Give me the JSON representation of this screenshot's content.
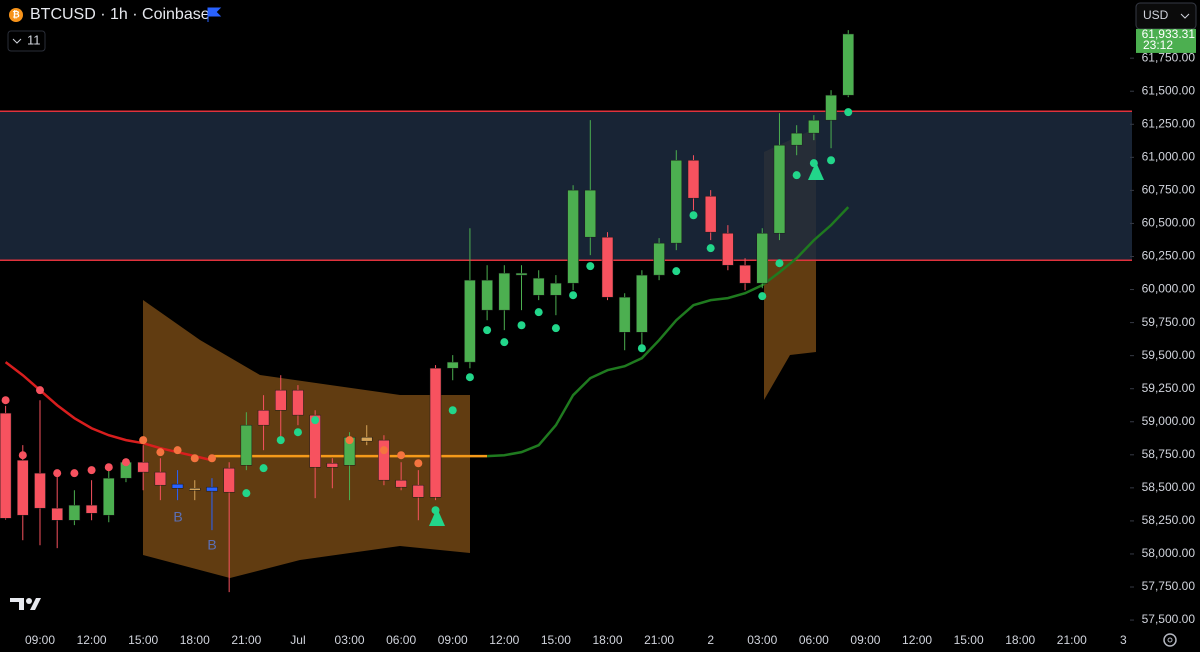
{
  "header": {
    "symbol": "BTCUSD · 1h · Coinbase",
    "indicator_count": "11",
    "currency": "USD"
  },
  "chart_data": {
    "type": "candlestick",
    "categories": [
      null,
      null,
      "09:00",
      null,
      null,
      "12:00",
      null,
      null,
      "15:00",
      null,
      null,
      "18:00",
      null,
      null,
      "21:00",
      null,
      null,
      "Jul",
      null,
      null,
      "03:00",
      null,
      null,
      "06:00",
      null,
      null,
      "09:00",
      null,
      null,
      "12:00",
      null,
      null,
      "15:00",
      null,
      null,
      "18:00",
      null,
      null,
      "21:00",
      null,
      null,
      "2",
      null,
      null,
      "03:00",
      null,
      null,
      "06:00",
      null,
      null,
      "09:00",
      null,
      null,
      "12:00",
      null,
      null,
      "15:00",
      null,
      null,
      "18:00",
      null,
      null,
      "21:00",
      null,
      null,
      "3"
    ],
    "open": [
      59065,
      58709,
      58611,
      58346,
      58255,
      58369,
      58293,
      58573,
      58694,
      58619,
      58528,
      58497,
      58505,
      58649,
      58671,
      59087,
      59239,
      59239,
      59050,
      58686,
      58671,
      58883,
      58861,
      58558,
      58520,
      59405,
      59405,
      59451,
      59844,
      59844,
      60109,
      59957,
      59957,
      60048,
      60396,
      60396,
      59677,
      59677,
      60109,
      60351,
      60978,
      60706,
      60426,
      60184,
      60048,
      60426,
      61092,
      61183,
      61281,
      61470,
      null,
      null,
      null,
      null,
      null,
      null,
      null,
      null,
      null,
      null,
      null,
      null,
      null,
      null,
      null,
      null
    ],
    "high": [
      59120,
      58823,
      59163,
      58634,
      58482,
      58558,
      58634,
      58724,
      58823,
      58724,
      58634,
      58558,
      58573,
      58694,
      59072,
      59201,
      59352,
      59277,
      59087,
      58724,
      58921,
      58974,
      58898,
      58694,
      58634,
      59428,
      59504,
      60464,
      60184,
      60184,
      60184,
      60146,
      60109,
      60789,
      61281,
      60434,
      59972,
      60146,
      60389,
      61054,
      61016,
      60752,
      60487,
      60237,
      60464,
      61334,
      61243,
      61319,
      61508,
      61962,
      null,
      null,
      null,
      null,
      null,
      null,
      null,
      null,
      null,
      null,
      null,
      null,
      null,
      null,
      null,
      null
    ],
    "low": [
      58260,
      58104,
      58066,
      58044,
      58218,
      58255,
      58240,
      58543,
      58482,
      58407,
      58407,
      58407,
      58180,
      57711,
      58634,
      58785,
      58861,
      58974,
      58422,
      58497,
      58407,
      58823,
      58520,
      58482,
      58255,
      58407,
      59314,
      59405,
      59768,
      59693,
      59844,
      59920,
      59806,
      59995,
      60260,
      59920,
      59541,
      59541,
      60071,
      60298,
      60600,
      60374,
      60146,
      59995,
      60010,
      60374,
      61016,
      61130,
      61069,
      61455,
      null,
      null,
      null,
      null,
      null,
      null,
      null,
      null,
      null,
      null,
      null,
      null,
      null,
      null,
      null,
      null
    ],
    "close": [
      58270,
      58293,
      58346,
      58255,
      58369,
      58308,
      58573,
      58694,
      58619,
      58520,
      58497,
      58482,
      58475,
      58467,
      58974,
      58974,
      59087,
      59050,
      58656,
      58656,
      58883,
      58853,
      58558,
      58505,
      58429,
      58429,
      59451,
      60071,
      60071,
      60124,
      60124,
      60086,
      60048,
      60752,
      60752,
      59942,
      59942,
      60109,
      60351,
      60978,
      60691,
      60434,
      60184,
      60048,
      60426,
      61092,
      61183,
      61281,
      61470,
      61933,
      null,
      null,
      null,
      null,
      null,
      null,
      null,
      null,
      null,
      null,
      null,
      null,
      null,
      null,
      null,
      null
    ],
    "colors": [
      "#f7525f",
      "#f7525f",
      "#f7525f",
      "#f7525f",
      "#4caf50",
      "#f7525f",
      "#4caf50",
      "#4caf50",
      "#f7525f",
      "#f7525f",
      "#2962ff",
      "#d7a55a",
      "#2962ff",
      "#f7525f",
      "#4caf50",
      "#f7525f",
      "#f7525f",
      "#f7525f",
      "#f7525f",
      "#f7525f",
      "#4caf50",
      "#d7a55a",
      "#f7525f",
      "#f7525f",
      "#f7525f",
      "#f7525f",
      "#4caf50",
      "#4caf50",
      "#4caf50",
      "#4caf50",
      "#4caf50",
      "#4caf50",
      "#4caf50",
      "#4caf50",
      "#4caf50",
      "#f7525f",
      "#4caf50",
      "#4caf50",
      "#4caf50",
      "#4caf50",
      "#f7525f",
      "#f7525f",
      "#f7525f",
      "#f7525f",
      "#4caf50",
      "#4caf50",
      "#4caf50",
      "#4caf50",
      "#4caf50",
      "#4caf50",
      null,
      null,
      null,
      null,
      null,
      null,
      null,
      null,
      null,
      null,
      null,
      null,
      null,
      null,
      null,
      null
    ],
    "trend": [
      {
        "color": "#d81e1e",
        "values": [
          59451,
          59352,
          59239,
          59125,
          59027,
          58951,
          58898,
          58861,
          58838,
          58800,
          58770,
          58740,
          58709,
          null,
          null,
          null,
          null,
          null,
          null,
          null,
          null,
          null,
          null,
          null,
          null,
          null,
          null,
          null,
          null,
          null,
          null,
          null,
          null,
          null,
          null,
          null,
          null,
          null,
          null,
          null,
          null,
          null,
          null,
          null,
          null,
          null,
          null,
          null,
          null,
          null,
          null,
          null,
          null,
          null,
          null,
          null,
          null,
          null,
          null,
          null,
          null,
          null,
          null,
          null,
          null,
          null
        ]
      },
      {
        "color": "#f59a1a",
        "values": [
          null,
          null,
          null,
          null,
          null,
          null,
          null,
          null,
          null,
          null,
          null,
          null,
          58740,
          58740,
          58740,
          58740,
          58740,
          58740,
          58740,
          58740,
          58740,
          58740,
          58740,
          58740,
          58740,
          58740,
          58740,
          58740,
          58740,
          null,
          null,
          null,
          null,
          null,
          null,
          null,
          null,
          null,
          null,
          null,
          null,
          null,
          null,
          null,
          null,
          null,
          null,
          null,
          null,
          null,
          null,
          null,
          null,
          null,
          null,
          null,
          null,
          null,
          null,
          null,
          null,
          null,
          null,
          null,
          null,
          null
        ]
      },
      {
        "color": "#1f7a1f",
        "values": [
          null,
          null,
          null,
          null,
          null,
          null,
          null,
          null,
          null,
          null,
          null,
          null,
          null,
          null,
          null,
          null,
          null,
          null,
          null,
          null,
          null,
          null,
          null,
          null,
          null,
          null,
          null,
          null,
          58740,
          58747,
          58770,
          58823,
          58974,
          59201,
          59330,
          59390,
          59420,
          59481,
          59617,
          59768,
          59882,
          59920,
          59935,
          59972,
          60033,
          60131,
          60237,
          60373,
          60487,
          60623,
          null,
          null,
          null,
          null,
          null,
          null,
          null,
          null,
          null,
          null,
          null,
          null,
          null,
          null,
          null,
          null
        ]
      }
    ],
    "dots": {
      "values": [
        59163,
        58747,
        59239,
        58611,
        58611,
        58634,
        58656,
        58694,
        58861,
        58770,
        58785,
        58724,
        58724,
        null,
        58460,
        58649,
        58861,
        58921,
        59012,
        null,
        58861,
        null,
        58785,
        58747,
        58686,
        58331,
        59087,
        59337,
        59693,
        59602,
        59730,
        59829,
        59708,
        59957,
        60177,
        null,
        null,
        59556,
        null,
        60139,
        60562,
        60313,
        null,
        null,
        59950,
        60199,
        60865,
        60956,
        60978,
        61342,
        null,
        null,
        null,
        null,
        null,
        null,
        null,
        null,
        null,
        null,
        null,
        null,
        null,
        null,
        null,
        null
      ],
      "colors": [
        "#f7525f",
        "#f7525f",
        "#f7525f",
        "#f7525f",
        "#f7525f",
        "#f7525f",
        "#f7525f",
        "#f7525f",
        "#f5743f",
        "#f5743f",
        "#f5743f",
        "#f5743f",
        "#f5743f",
        null,
        "#22d68a",
        "#22d68a",
        "#22d68a",
        "#22d68a",
        "#22d68a",
        null,
        "#f5743f",
        null,
        "#f5743f",
        "#f5743f",
        "#f5743f",
        "#22d68a",
        "#22d68a",
        "#22d68a",
        "#22d68a",
        "#22d68a",
        "#22d68a",
        "#22d68a",
        "#22d68a",
        "#22d68a",
        "#22d68a",
        null,
        null,
        "#22d68a",
        null,
        "#22d68a",
        "#22d68a",
        "#22d68a",
        null,
        null,
        "#22d68a",
        "#22d68a",
        "#22d68a",
        "#22d68a",
        "#22d68a",
        "#22d68a",
        null,
        null,
        null,
        null,
        null,
        null,
        null,
        null,
        null,
        null,
        null,
        null,
        null,
        null,
        null,
        null
      ]
    },
    "zone": {
      "top": 61349,
      "bottom": 60222,
      "line_color": "#e0323c",
      "fill": "#1c2a3e"
    },
    "markers": [
      "B",
      "B"
    ],
    "last_price": {
      "value": 61933.31,
      "label": "61,933.31"
    },
    "countdown": "23:12",
    "ylim": [
      57440,
      62190
    ],
    "yticks": [
      {
        "value": 57500,
        "label": "57,500.00"
      },
      {
        "value": 57750,
        "label": "57,750.00"
      },
      {
        "value": 58000,
        "label": "58,000.00"
      },
      {
        "value": 58250,
        "label": "58,250.00"
      },
      {
        "value": 58500,
        "label": "58,500.00"
      },
      {
        "value": 58750,
        "label": "58,750.00"
      },
      {
        "value": 59000,
        "label": "59,000.00"
      },
      {
        "value": 59250,
        "label": "59,250.00"
      },
      {
        "value": 59500,
        "label": "59,500.00"
      },
      {
        "value": 59750,
        "label": "59,750.00"
      },
      {
        "value": 60000,
        "label": "60,000.00"
      },
      {
        "value": 60250,
        "label": "60,250.00"
      },
      {
        "value": 60500,
        "label": "60,500.00"
      },
      {
        "value": 60750,
        "label": "60,750.00"
      },
      {
        "value": 61000,
        "label": "61,000.00"
      },
      {
        "value": 61250,
        "label": "61,250.00"
      },
      {
        "value": 61500,
        "label": "61,500.00"
      },
      {
        "value": 61750,
        "label": "61,750.00"
      }
    ]
  }
}
